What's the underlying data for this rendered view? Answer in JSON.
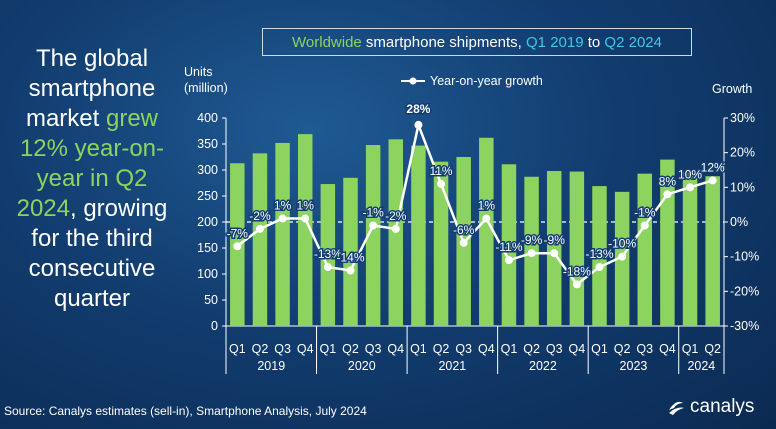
{
  "headline": {
    "part1": "The global smartphone market ",
    "highlight1": "grew 12% year-on-year in Q2 2024",
    "part2": ", growing for the third consecutive quarter"
  },
  "title": {
    "word1": "Worldwide",
    "word2": " smartphone shipments, ",
    "word3": "Q1 2019",
    "word4": " to ",
    "word5": "Q2 2024"
  },
  "units_label": [
    "Units",
    "(million)"
  ],
  "growth_label": "Growth",
  "legend_label": "Year-on-year growth",
  "source": "Source: Canalys estimates (sell-in), Smartphone Analysis, July 2024",
  "logo_text": "canalys",
  "colors": {
    "bar": "#8dd35f",
    "line": "#ffffff",
    "accent": "#3fc7e6"
  },
  "chart_data": {
    "type": "bar",
    "title": "Worldwide smartphone shipments, Q1 2019 to Q2 2024",
    "ylabel": "Units (million)",
    "y2label": "Growth",
    "ylim": [
      0,
      400
    ],
    "y_ticks": [
      0,
      50,
      100,
      150,
      200,
      250,
      300,
      350,
      400
    ],
    "y2lim": [
      -30,
      30
    ],
    "y2_ticks": [
      "-30%",
      "-20%",
      "-10%",
      "0%",
      "10%",
      "20%",
      "30%"
    ],
    "quarters": [
      "Q1",
      "Q2",
      "Q3",
      "Q4",
      "Q1",
      "Q2",
      "Q3",
      "Q4",
      "Q1",
      "Q2",
      "Q3",
      "Q4",
      "Q1",
      "Q2",
      "Q3",
      "Q4",
      "Q1",
      "Q2",
      "Q3",
      "Q4",
      "Q1",
      "Q2"
    ],
    "years": [
      {
        "label": "2019",
        "span": [
          0,
          3
        ]
      },
      {
        "label": "2020",
        "span": [
          4,
          7
        ]
      },
      {
        "label": "2021",
        "span": [
          8,
          11
        ]
      },
      {
        "label": "2022",
        "span": [
          12,
          15
        ]
      },
      {
        "label": "2023",
        "span": [
          16,
          19
        ]
      },
      {
        "label": "2024",
        "span": [
          20,
          21
        ]
      }
    ],
    "series": [
      {
        "name": "Units (million)",
        "type": "bar",
        "values": [
          313,
          332,
          352,
          369,
          273,
          285,
          348,
          359,
          347,
          316,
          325,
          362,
          311,
          287,
          298,
          297,
          269,
          258,
          293,
          320,
          296,
          288
        ]
      },
      {
        "name": "Year-on-year growth",
        "type": "line",
        "values": [
          -7,
          -2,
          1,
          1,
          -13,
          -14,
          -1,
          -2,
          28,
          11,
          -6,
          1,
          -11,
          -9,
          -9,
          -18,
          -13,
          -10,
          -1,
          8,
          10,
          12
        ],
        "labels": [
          "-7%",
          "-2%",
          "1%",
          "1%",
          "-13%",
          "-14%",
          "-1%",
          "-2%",
          "28%",
          "11%",
          "-6%",
          "1%",
          "-11%",
          "-9%",
          "-9%",
          "-18%",
          "-13%",
          "-10%",
          "-1%",
          "8%",
          "10%",
          "12%"
        ]
      }
    ],
    "grid": false,
    "legend": "top-center"
  }
}
